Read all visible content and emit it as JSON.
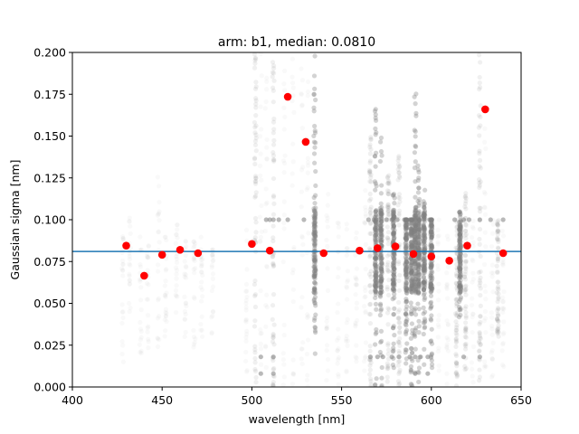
{
  "chart_data": {
    "type": "scatter",
    "title": "arm: b1, median: 0.0810",
    "xlabel": "wavelength [nm]",
    "ylabel": "Gaussian sigma [nm]",
    "xlim": [
      400,
      650
    ],
    "ylim": [
      0.0,
      0.2
    ],
    "xticks": [
      400,
      450,
      500,
      550,
      600,
      650
    ],
    "xtick_labels": [
      "400",
      "450",
      "500",
      "550",
      "600",
      "650"
    ],
    "yticks": [
      0.0,
      0.025,
      0.05,
      0.075,
      0.1,
      0.125,
      0.15,
      0.175,
      0.2
    ],
    "ytick_labels": [
      "0.000",
      "0.025",
      "0.050",
      "0.075",
      "0.100",
      "0.125",
      "0.150",
      "0.175",
      "0.200"
    ],
    "grid": false,
    "median_line": {
      "y": 0.081,
      "color": "#1f77b4"
    },
    "binned_points": {
      "color": "#ff0000",
      "x": [
        430,
        440,
        450,
        460,
        470,
        500,
        510,
        520,
        530,
        540,
        560,
        570,
        580,
        590,
        600,
        610,
        620,
        630,
        640
      ],
      "y": [
        0.0845,
        0.0665,
        0.079,
        0.082,
        0.08,
        0.0855,
        0.0815,
        0.1735,
        0.1465,
        0.08,
        0.0815,
        0.083,
        0.084,
        0.0795,
        0.078,
        0.0755,
        0.0845,
        0.166,
        0.08
      ]
    },
    "background_series": {
      "color": "#808080",
      "columns": [
        {
          "x": 428,
          "ymin": 0.015,
          "ymax": 0.095,
          "density": "faint"
        },
        {
          "x": 432,
          "ymin": 0.04,
          "ymax": 0.105,
          "density": "faint"
        },
        {
          "x": 438,
          "ymin": 0.02,
          "ymax": 0.09,
          "density": "faint"
        },
        {
          "x": 442,
          "ymin": 0.02,
          "ymax": 0.085,
          "density": "faint"
        },
        {
          "x": 448,
          "ymin": 0.02,
          "ymax": 0.13,
          "density": "faint"
        },
        {
          "x": 452,
          "ymin": 0.03,
          "ymax": 0.09,
          "density": "faint"
        },
        {
          "x": 458,
          "ymin": 0.03,
          "ymax": 0.1,
          "density": "faint"
        },
        {
          "x": 463,
          "ymin": 0.03,
          "ymax": 0.09,
          "density": "faint"
        },
        {
          "x": 468,
          "ymin": 0.02,
          "ymax": 0.09,
          "density": "faint"
        },
        {
          "x": 472,
          "ymin": 0.03,
          "ymax": 0.09,
          "density": "faint"
        },
        {
          "x": 478,
          "ymin": 0.03,
          "ymax": 0.09,
          "density": "faint"
        },
        {
          "x": 497,
          "ymin": 0.0,
          "ymax": 0.1,
          "density": "faint"
        },
        {
          "x": 502,
          "ymin": 0.0,
          "ymax": 0.2,
          "density": "medium"
        },
        {
          "x": 505,
          "ymin": 0.0,
          "ymax": 0.2,
          "density": "faint"
        },
        {
          "x": 508,
          "ymin": 0.0,
          "ymax": 0.2,
          "density": "faint"
        },
        {
          "x": 512,
          "ymin": 0.0,
          "ymax": 0.2,
          "density": "medium"
        },
        {
          "x": 518,
          "ymin": 0.0,
          "ymax": 0.2,
          "density": "faint"
        },
        {
          "x": 523,
          "ymin": 0.0,
          "ymax": 0.2,
          "density": "faint"
        },
        {
          "x": 528,
          "ymin": 0.0,
          "ymax": 0.2,
          "density": "faint"
        },
        {
          "x": 531,
          "ymin": 0.0,
          "ymax": 0.2,
          "density": "faint"
        },
        {
          "x": 535,
          "ymin": 0.015,
          "ymax": 0.2,
          "density": "dense"
        },
        {
          "x": 542,
          "ymin": 0.0,
          "ymax": 0.12,
          "density": "faint"
        },
        {
          "x": 548,
          "ymin": 0.0,
          "ymax": 0.1,
          "density": "faint"
        },
        {
          "x": 553,
          "ymin": 0.0,
          "ymax": 0.1,
          "density": "faint"
        },
        {
          "x": 558,
          "ymin": 0.0,
          "ymax": 0.1,
          "density": "faint"
        },
        {
          "x": 563,
          "ymin": 0.0,
          "ymax": 0.12,
          "density": "faint"
        },
        {
          "x": 566,
          "ymin": 0.0,
          "ymax": 0.15,
          "density": "medium"
        },
        {
          "x": 569,
          "ymin": 0.0,
          "ymax": 0.17,
          "density": "dense"
        },
        {
          "x": 572,
          "ymin": 0.0,
          "ymax": 0.15,
          "density": "dense"
        },
        {
          "x": 576,
          "ymin": 0.0,
          "ymax": 0.13,
          "density": "medium"
        },
        {
          "x": 579,
          "ymin": 0.01,
          "ymax": 0.12,
          "density": "dense"
        },
        {
          "x": 582,
          "ymin": 0.0,
          "ymax": 0.14,
          "density": "medium"
        },
        {
          "x": 586,
          "ymin": 0.01,
          "ymax": 0.1,
          "density": "dense"
        },
        {
          "x": 589,
          "ymin": 0.0,
          "ymax": 0.1,
          "density": "dense"
        },
        {
          "x": 591,
          "ymin": 0.0,
          "ymax": 0.18,
          "density": "dense"
        },
        {
          "x": 593,
          "ymin": 0.0,
          "ymax": 0.14,
          "density": "dense"
        },
        {
          "x": 596,
          "ymin": 0.01,
          "ymax": 0.12,
          "density": "dense"
        },
        {
          "x": 600,
          "ymin": 0.01,
          "ymax": 0.1,
          "density": "dense"
        },
        {
          "x": 604,
          "ymin": 0.0,
          "ymax": 0.1,
          "density": "faint"
        },
        {
          "x": 609,
          "ymin": 0.0,
          "ymax": 0.1,
          "density": "faint"
        },
        {
          "x": 614,
          "ymin": 0.0,
          "ymax": 0.1,
          "density": "medium"
        },
        {
          "x": 616,
          "ymin": 0.04,
          "ymax": 0.11,
          "density": "dense"
        },
        {
          "x": 619,
          "ymin": 0.01,
          "ymax": 0.12,
          "density": "medium"
        },
        {
          "x": 623,
          "ymin": 0.0,
          "ymax": 0.1,
          "density": "faint"
        },
        {
          "x": 627,
          "ymin": 0.0,
          "ymax": 0.2,
          "density": "medium"
        },
        {
          "x": 630,
          "ymin": 0.0,
          "ymax": 0.17,
          "density": "faint"
        },
        {
          "x": 634,
          "ymin": 0.0,
          "ymax": 0.1,
          "density": "faint"
        },
        {
          "x": 637,
          "ymin": 0.03,
          "ymax": 0.1,
          "density": "medium"
        },
        {
          "x": 640,
          "ymin": 0.01,
          "ymax": 0.1,
          "density": "faint"
        }
      ],
      "clusters": [
        {
          "x": 508,
          "y": 0.1
        },
        {
          "x": 510,
          "y": 0.1
        },
        {
          "x": 512,
          "y": 0.1
        },
        {
          "x": 515,
          "y": 0.1
        },
        {
          "x": 520,
          "y": 0.1
        },
        {
          "x": 529,
          "y": 0.1
        },
        {
          "x": 535,
          "y": 0.1
        },
        {
          "x": 565,
          "y": 0.1
        },
        {
          "x": 568,
          "y": 0.1
        },
        {
          "x": 571,
          "y": 0.1
        },
        {
          "x": 575,
          "y": 0.1
        },
        {
          "x": 578,
          "y": 0.1
        },
        {
          "x": 581,
          "y": 0.1
        },
        {
          "x": 585,
          "y": 0.1
        },
        {
          "x": 588,
          "y": 0.1
        },
        {
          "x": 591,
          "y": 0.1
        },
        {
          "x": 593,
          "y": 0.1
        },
        {
          "x": 596,
          "y": 0.1
        },
        {
          "x": 599,
          "y": 0.1
        },
        {
          "x": 613,
          "y": 0.1
        },
        {
          "x": 618,
          "y": 0.1
        },
        {
          "x": 621,
          "y": 0.1
        },
        {
          "x": 627,
          "y": 0.1
        },
        {
          "x": 633,
          "y": 0.1
        },
        {
          "x": 640,
          "y": 0.1
        },
        {
          "x": 505,
          "y": 0.018
        },
        {
          "x": 512,
          "y": 0.018
        },
        {
          "x": 566,
          "y": 0.018
        },
        {
          "x": 570,
          "y": 0.018
        },
        {
          "x": 573,
          "y": 0.018
        },
        {
          "x": 578,
          "y": 0.018
        },
        {
          "x": 582,
          "y": 0.018
        },
        {
          "x": 588,
          "y": 0.018
        },
        {
          "x": 591,
          "y": 0.018
        },
        {
          "x": 594,
          "y": 0.018
        },
        {
          "x": 598,
          "y": 0.018
        },
        {
          "x": 618,
          "y": 0.018
        },
        {
          "x": 627,
          "y": 0.018
        },
        {
          "x": 505,
          "y": 0.008
        },
        {
          "x": 512,
          "y": 0.008
        },
        {
          "x": 591,
          "y": 0.008
        },
        {
          "x": 598,
          "y": 0.008
        }
      ]
    }
  }
}
